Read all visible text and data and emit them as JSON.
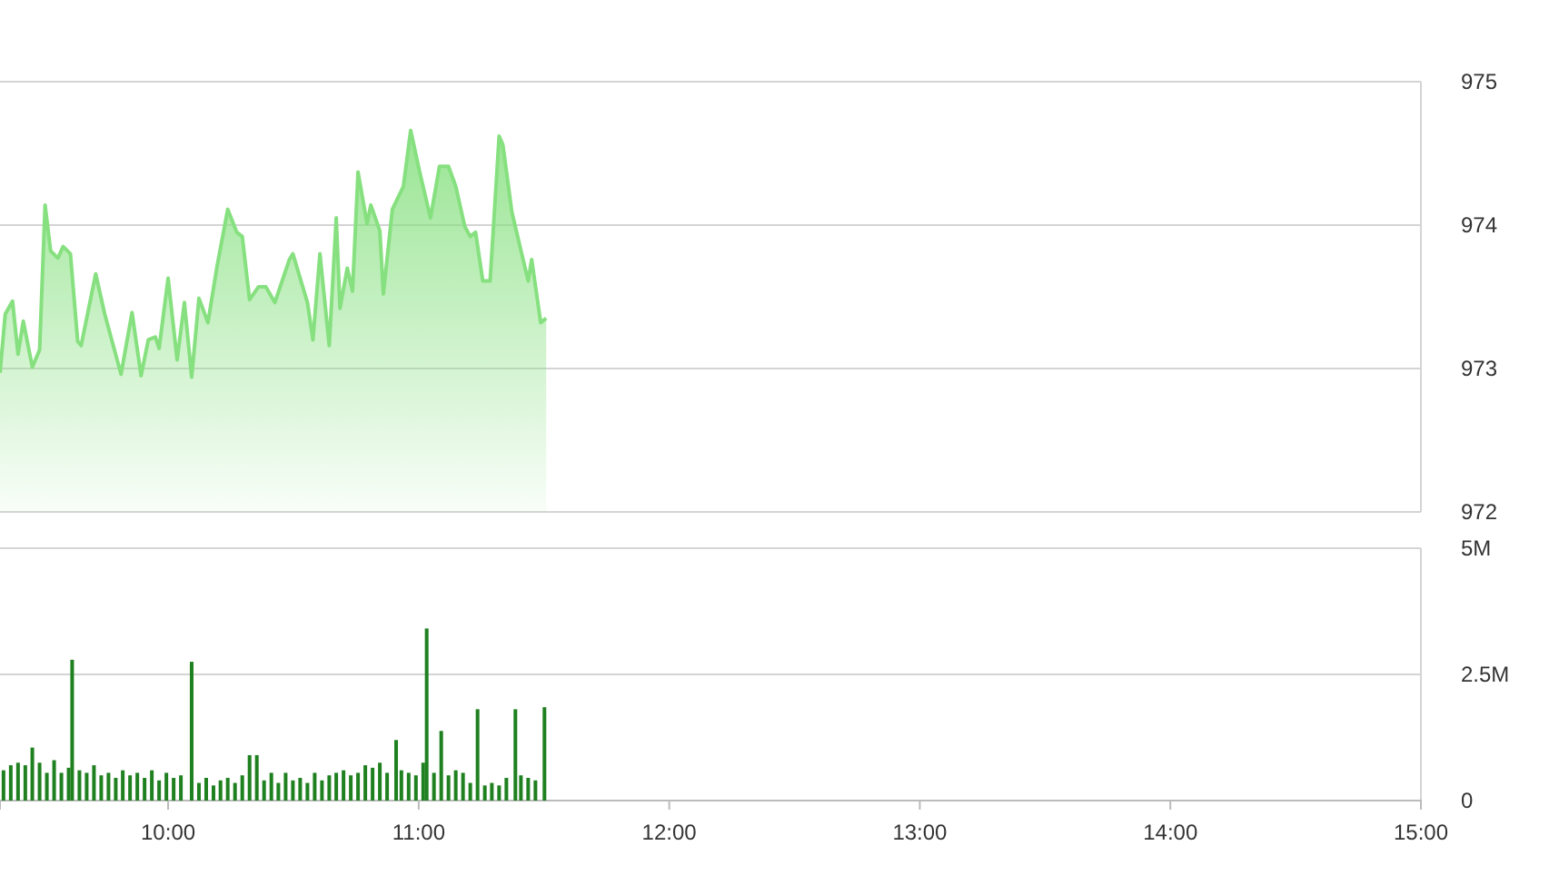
{
  "chart_data": [
    {
      "type": "area",
      "color": "#86e07f",
      "xlim": [
        9.329,
        15
      ],
      "ylim": [
        972,
        975
      ],
      "yticks": [
        972,
        973,
        974,
        975
      ],
      "grid": "y",
      "tick_labels": "y",
      "x": [
        9.329,
        9.35,
        9.379,
        9.401,
        9.422,
        9.458,
        9.487,
        9.509,
        9.531,
        9.56,
        9.581,
        9.61,
        9.639,
        9.653,
        9.711,
        9.747,
        9.812,
        9.856,
        9.892,
        9.921,
        9.949,
        9.964,
        10,
        10.036,
        10.065,
        10.094,
        10.123,
        10.159,
        10.195,
        10.238,
        10.274,
        10.296,
        10.325,
        10.361,
        10.39,
        10.426,
        10.484,
        10.498,
        10.556,
        10.578,
        10.606,
        10.643,
        10.671,
        10.686,
        10.715,
        10.736,
        10.758,
        10.794,
        10.809,
        10.845,
        10.859,
        10.895,
        10.939,
        10.968,
        11.004,
        11.047,
        11.083,
        11.119,
        11.148,
        11.184,
        11.206,
        11.227,
        11.256,
        11.285,
        11.321,
        11.336,
        11.372,
        11.437,
        11.451,
        11.487,
        11.509
      ],
      "values": [
        972.97,
        973.38,
        973.47,
        973.1,
        973.33,
        973.01,
        973.13,
        974.14,
        973.82,
        973.77,
        973.85,
        973.8,
        973.19,
        973.16,
        973.66,
        973.38,
        972.96,
        973.39,
        972.95,
        973.2,
        973.22,
        973.14,
        973.63,
        973.06,
        973.46,
        972.94,
        973.49,
        973.32,
        973.71,
        974.11,
        973.95,
        973.92,
        973.48,
        973.57,
        973.57,
        973.46,
        973.76,
        973.8,
        973.46,
        973.2,
        973.8,
        973.16,
        974.05,
        973.42,
        973.7,
        973.54,
        974.37,
        974.01,
        974.14,
        973.96,
        973.52,
        974.11,
        974.27,
        974.66,
        974.37,
        974.05,
        974.41,
        974.41,
        974.27,
        973.99,
        973.92,
        973.95,
        973.61,
        973.61,
        974.62,
        974.56,
        974.09,
        973.61,
        973.76,
        973.32,
        973.35
      ]
    },
    {
      "type": "bar",
      "color": "#1f801f",
      "xlim": [
        9.329,
        15
      ],
      "ylim": [
        0,
        5
      ],
      "yticks": [
        0,
        {
          "value": 2.5,
          "label": "2.5M"
        },
        {
          "value": 5,
          "label": "5M"
        }
      ],
      "grid": "y",
      "xticks": [
        {
          "value": 10,
          "label": "10:00"
        },
        {
          "value": 11,
          "label": "11:00"
        },
        {
          "value": 12,
          "label": "12:00"
        },
        {
          "value": 13,
          "label": "13:00"
        },
        {
          "value": 14,
          "label": "14:00"
        },
        {
          "value": 15,
          "label": "15:00"
        }
      ],
      "x": [
        9.343,
        9.372,
        9.401,
        9.43,
        9.458,
        9.487,
        9.516,
        9.545,
        9.574,
        9.603,
        9.617,
        9.646,
        9.675,
        9.704,
        9.733,
        9.762,
        9.791,
        9.819,
        9.848,
        9.877,
        9.906,
        9.935,
        9.964,
        9.993,
        10.022,
        10.051,
        10.094,
        10.123,
        10.152,
        10.181,
        10.209,
        10.238,
        10.267,
        10.296,
        10.325,
        10.354,
        10.383,
        10.412,
        10.44,
        10.469,
        10.498,
        10.527,
        10.556,
        10.585,
        10.614,
        10.643,
        10.671,
        10.7,
        10.729,
        10.758,
        10.787,
        10.816,
        10.845,
        10.874,
        10.91,
        10.931,
        10.96,
        10.989,
        11.018,
        11.032,
        11.061,
        11.09,
        11.119,
        11.148,
        11.177,
        11.206,
        11.235,
        11.264,
        11.292,
        11.321,
        11.35,
        11.386,
        11.408,
        11.437,
        11.466,
        11.502
      ],
      "values": [
        0.6,
        0.7,
        0.75,
        0.7,
        1.05,
        0.75,
        0.55,
        0.8,
        0.55,
        0.65,
        2.79,
        0.6,
        0.55,
        0.7,
        0.5,
        0.55,
        0.45,
        0.6,
        0.5,
        0.55,
        0.45,
        0.6,
        0.4,
        0.55,
        0.45,
        0.5,
        2.75,
        0.35,
        0.45,
        0.3,
        0.4,
        0.45,
        0.35,
        0.5,
        0.9,
        0.9,
        0.4,
        0.55,
        0.35,
        0.55,
        0.4,
        0.45,
        0.35,
        0.55,
        0.4,
        0.5,
        0.55,
        0.6,
        0.5,
        0.55,
        0.7,
        0.65,
        0.75,
        0.55,
        1.2,
        0.6,
        0.55,
        0.5,
        0.75,
        3.41,
        0.55,
        1.38,
        0.5,
        0.6,
        0.55,
        0.35,
        1.81,
        0.3,
        0.35,
        0.3,
        0.45,
        1.81,
        0.5,
        0.45,
        0.4,
        1.85
      ]
    }
  ]
}
